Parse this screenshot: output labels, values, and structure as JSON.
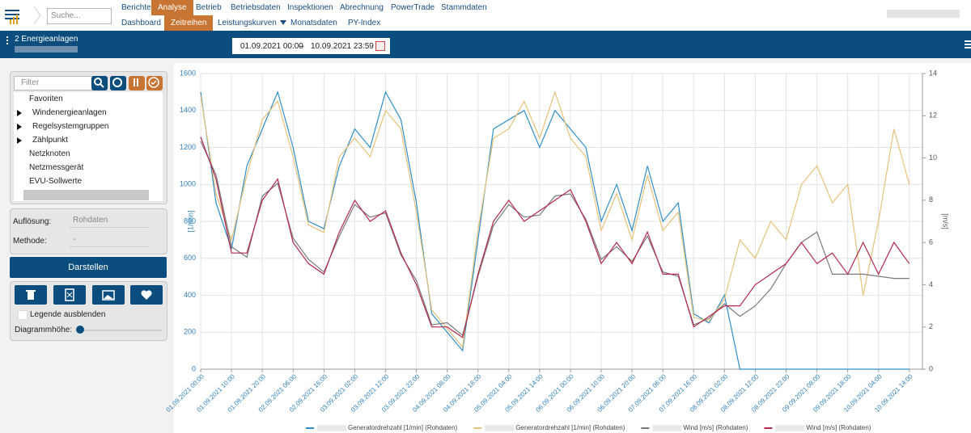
{
  "nav": {
    "search_placeholder": "Suche...",
    "menu": [
      "Berichte",
      "Analyse",
      "Betrieb",
      "Betriebsdaten",
      "Inspektionen",
      "Abrechnung",
      "PowerTrade",
      "Stammdaten"
    ],
    "submenu": [
      "Dashboard",
      "Zeitreihen",
      "Leistungskurven",
      "Monatsdaten",
      "PY-Index"
    ]
  },
  "toolbar": {
    "title": "2 Energieanlagen",
    "date_from": "01.09.2021 00:00",
    "date_sep": "–",
    "date_to": "10.09.2021 23:59"
  },
  "sidebar": {
    "filter_placeholder": "Filter",
    "tree": [
      "Favoriten",
      "Windenergieanlagen",
      "Regelsystemgruppen",
      "Zählpunkt",
      "Netzknoten",
      "Netzmessgerät",
      "EVU-Sollwerte"
    ],
    "resolution_label": "Auflösung:",
    "resolution_value": "Rohdaten",
    "method_label": "Methode:",
    "method_value": "-",
    "button": "Darstellen",
    "legend_toggle": "Legende ausblenden",
    "height_label": "Diagrammhöhe:"
  },
  "chart_data": {
    "type": "line",
    "categories": [
      "01.09.2021 00:00",
      null,
      "01.09.2021 10:00",
      null,
      "01.09.2021 20:00",
      null,
      "02.09.2021 06:00",
      null,
      "02.09.2021 16:00",
      null,
      "03.09.2021 02:00",
      null,
      "03.09.2021 12:00",
      null,
      "03.09.2021 22:00",
      null,
      "04.09.2021 08:00",
      null,
      "04.09.2021 18:00",
      null,
      "05.09.2021 04:00",
      null,
      "05.09.2021 14:00",
      null,
      "06.09.2021 00:00",
      null,
      "06.09.2021 10:00",
      null,
      "06.09.2021 20:00",
      null,
      "07.09.2021 06:00",
      null,
      "07.09.2021 16:00",
      null,
      "08.09.2021 02:00",
      null,
      "08.09.2021 12:00",
      null,
      "08.09.2021 22:00",
      null,
      "09.09.2021 08:00",
      null,
      "09.09.2021 18:00",
      null,
      "10.09.2021 04:00",
      null,
      "10.09.2021 14:00"
    ],
    "series": [
      {
        "name": "Generatordrehzahl [1/min] (Rohdaten)",
        "color": "#2f8fc8",
        "values": [
          1500,
          900,
          650,
          1100,
          1300,
          1500,
          1200,
          800,
          760,
          1100,
          1300,
          1200,
          1500,
          1350,
          900,
          300,
          200,
          100,
          700,
          1300,
          1350,
          1400,
          1200,
          1400,
          1300,
          1200,
          800,
          1000,
          750,
          1100,
          800,
          900,
          300,
          250,
          400,
          0,
          0,
          0,
          0,
          0,
          0,
          0,
          0,
          0,
          0,
          0,
          0
        ]
      },
      {
        "name": "Generatordrehzahl [1/min] (Rohdaten)",
        "color": "#e6c27a",
        "values": [
          1480,
          950,
          700,
          1050,
          1350,
          1450,
          1150,
          780,
          740,
          1150,
          1250,
          1150,
          1400,
          1300,
          850,
          320,
          220,
          120,
          750,
          1250,
          1300,
          1450,
          1250,
          1500,
          1250,
          1150,
          750,
          950,
          700,
          1050,
          750,
          850,
          280,
          260,
          380,
          700,
          600,
          800,
          700,
          1000,
          1100,
          900,
          1000,
          400,
          800,
          1300,
          1000
        ]
      },
      {
        "name": "Wind [m/s] (Rohdaten)",
        "color": "#7a7a7a",
        "axis": "y2",
        "values": [
          10.8,
          9.2,
          5.8,
          5.3,
          8.2,
          8.8,
          6.2,
          5.2,
          4.6,
          6.3,
          7.8,
          7.2,
          7.4,
          5.4,
          4.2,
          2.1,
          2.2,
          1.6,
          4.4,
          6.8,
          7.8,
          7.2,
          7.3,
          8.2,
          8.3,
          7.1,
          5.2,
          5.8,
          5.1,
          6.3,
          4.6,
          4.4,
          2.1,
          2.4,
          3.1,
          2.5,
          3,
          3.8,
          5,
          6,
          6.5,
          4.5,
          4.5,
          4.5,
          4.4,
          4.3,
          4.3
        ]
      },
      {
        "name": "Wind [m/s] (Rohdaten)",
        "color": "#b5294c",
        "axis": "y2",
        "values": [
          11,
          9,
          5.5,
          5.5,
          8,
          9,
          6,
          5,
          4.5,
          6.5,
          8,
          7,
          7.5,
          5.5,
          4,
          2,
          2,
          1.5,
          4.5,
          7,
          8,
          7,
          7.5,
          8,
          8.5,
          7,
          5,
          6,
          5,
          6.5,
          4.5,
          4.5,
          2,
          2.5,
          3,
          3,
          4,
          4.5,
          5,
          6,
          5,
          5.5,
          4.5,
          6,
          4.5,
          6,
          5
        ]
      }
    ],
    "ylabel": "[1/min]",
    "y2label": "[m/s]",
    "ylim": [
      0,
      1600
    ],
    "yticks": [
      0,
      200,
      400,
      600,
      800,
      1000,
      1200,
      1400,
      1600
    ],
    "y2lim": [
      0,
      14
    ],
    "y2ticks": [
      0,
      2,
      4,
      6,
      8,
      10,
      12,
      14
    ],
    "grid": true,
    "legend": "bottom"
  }
}
